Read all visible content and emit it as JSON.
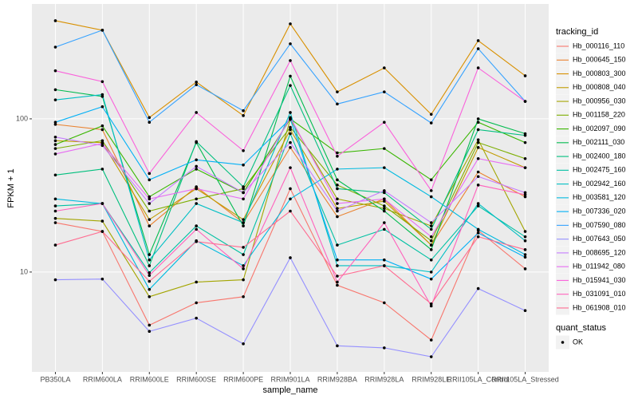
{
  "chart_data": {
    "type": "line",
    "x_label": "sample_name",
    "y_label": "FPKM + 1",
    "log_y": true,
    "grid": true,
    "categories": [
      "PB350LA",
      "RRIM600LA",
      "RRIM600LE",
      "RRIM600SE",
      "RRIM600PE",
      "RRIM901LA",
      "RRIM928BA",
      "RRIM928LA",
      "RRIM928LE",
      "RRII105LA_Control",
      "RRII105LA_Stressed"
    ],
    "ylim": [
      2.23,
      562
    ],
    "yticks": [
      10,
      100
    ],
    "legend_title": "tracking_id",
    "shape_legend": {
      "title": "quant_status",
      "labels": [
        "OK"
      ]
    },
    "series": [
      {
        "name": "Hb_000116_110",
        "color": "#F8766D",
        "values": [
          21,
          18.4,
          4.5,
          6.3,
          6.9,
          35,
          8.2,
          6.3,
          3.6,
          18.7,
          10.5
        ]
      },
      {
        "name": "Hb_000645_150",
        "color": "#EA8331",
        "values": [
          92,
          85,
          20,
          36,
          21,
          65,
          23,
          30,
          15,
          45,
          31
        ]
      },
      {
        "name": "Hb_000803_300",
        "color": "#D89000",
        "values": [
          437,
          379,
          102,
          174,
          105,
          417,
          150,
          215,
          107,
          324,
          191
        ]
      },
      {
        "name": "Hb_000808_040",
        "color": "#C09B00",
        "values": [
          72,
          70,
          22,
          35,
          22,
          85,
          26,
          29,
          15,
          65,
          48
        ]
      },
      {
        "name": "Hb_000956_030",
        "color": "#A3A500",
        "values": [
          22.4,
          21.5,
          6.9,
          8.6,
          8.9,
          99,
          30,
          26,
          20,
          73,
          18.4
        ]
      },
      {
        "name": "Hb_001158_220",
        "color": "#7CAE00",
        "values": [
          64,
          72,
          25,
          30,
          35,
          88,
          37,
          27,
          16,
          70,
          55
        ]
      },
      {
        "name": "Hb_002097_090",
        "color": "#39B600",
        "values": [
          68,
          90,
          31,
          47,
          33,
          100,
          60,
          64,
          40,
          95,
          70
        ]
      },
      {
        "name": "Hb_002111_030",
        "color": "#00BB4E",
        "values": [
          155,
          140,
          13,
          70,
          20,
          190,
          40,
          25,
          14,
          100,
          80
        ]
      },
      {
        "name": "Hb_002400_180",
        "color": "#00BF7D",
        "values": [
          43,
          47,
          11,
          71,
          36,
          165,
          35,
          33,
          19,
          85,
          78
        ]
      },
      {
        "name": "Hb_002475_160",
        "color": "#00C1A3",
        "values": [
          27,
          28,
          9.9,
          20,
          13,
          80,
          15,
          19,
          12,
          27,
          17
        ]
      },
      {
        "name": "Hb_002942_160",
        "color": "#00BFC4",
        "values": [
          133,
          144,
          12,
          28,
          21,
          110,
          11,
          11,
          10,
          28,
          16
        ]
      },
      {
        "name": "Hb_003581_120",
        "color": "#00BAE0",
        "values": [
          30,
          28,
          7.7,
          16,
          11,
          30,
          47,
          48,
          31,
          19,
          13
        ]
      },
      {
        "name": "Hb_007336_020",
        "color": "#00B0F6",
        "values": [
          95,
          120,
          40,
          54,
          50,
          100,
          12,
          12,
          9,
          18,
          12.5
        ]
      },
      {
        "name": "Hb_007590_080",
        "color": "#35A2FF",
        "values": [
          294,
          379,
          95,
          167,
          113,
          309,
          125,
          150,
          94,
          287,
          130
        ]
      },
      {
        "name": "Hb_007643_050",
        "color": "#9590FF",
        "values": [
          8.9,
          9.0,
          4.1,
          5.0,
          3.4,
          12.4,
          3.3,
          3.2,
          2.8,
          7.8,
          5.6
        ]
      },
      {
        "name": "Hb_008695_120",
        "color": "#C77CFF",
        "values": [
          76,
          67,
          28,
          49,
          33,
          70,
          25,
          34,
          21,
          42,
          33
        ]
      },
      {
        "name": "Hb_011942_080",
        "color": "#E76BF3",
        "values": [
          59,
          69,
          30,
          35,
          30,
          102,
          28,
          30,
          17,
          55,
          48
        ]
      },
      {
        "name": "Hb_015941_030",
        "color": "#FA62DB",
        "values": [
          206,
          175,
          44,
          110,
          62,
          240,
          57,
          95,
          34,
          215,
          130
        ]
      },
      {
        "name": "Hb_031091_010",
        "color": "#FF62BC",
        "values": [
          25,
          28,
          9.5,
          19,
          10.5,
          48,
          8.6,
          21,
          6,
          37,
          32
        ]
      },
      {
        "name": "Hb_061908_010",
        "color": "#FF6C91",
        "values": [
          15,
          18.4,
          8.7,
          15.8,
          14.5,
          25,
          9.4,
          11,
          6.2,
          17,
          14
        ]
      }
    ]
  }
}
